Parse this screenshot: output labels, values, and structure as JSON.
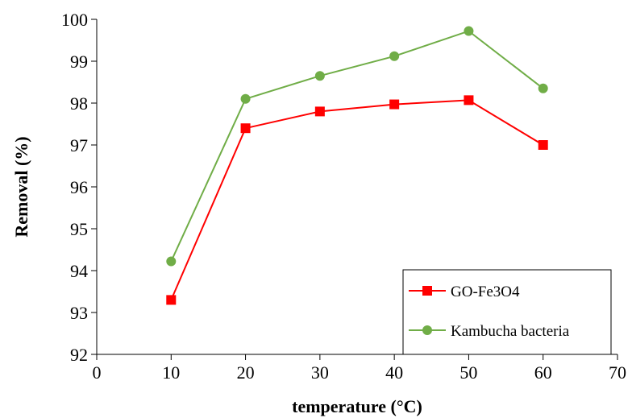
{
  "chart_data": {
    "type": "line",
    "xlabel": "temperature (°C)",
    "ylabel": "Removal (%)",
    "xlim": [
      0,
      70
    ],
    "ylim": [
      92,
      100
    ],
    "xticks": [
      0,
      10,
      20,
      30,
      40,
      50,
      60,
      70
    ],
    "yticks": [
      92,
      93,
      94,
      95,
      96,
      97,
      98,
      99,
      100
    ],
    "grid": false,
    "legend_position": "bottom-right",
    "x": [
      10,
      20,
      30,
      40,
      50,
      60
    ],
    "series": [
      {
        "name": "GO-Fe3O4",
        "color": "#ff0000",
        "marker": "square",
        "values": [
          93.3,
          97.4,
          97.8,
          97.97,
          98.07,
          97.0
        ]
      },
      {
        "name": "Kambucha bacteria",
        "color": "#70ad47",
        "marker": "circle",
        "values": [
          94.22,
          98.1,
          98.65,
          99.12,
          99.72,
          98.35
        ]
      }
    ]
  }
}
